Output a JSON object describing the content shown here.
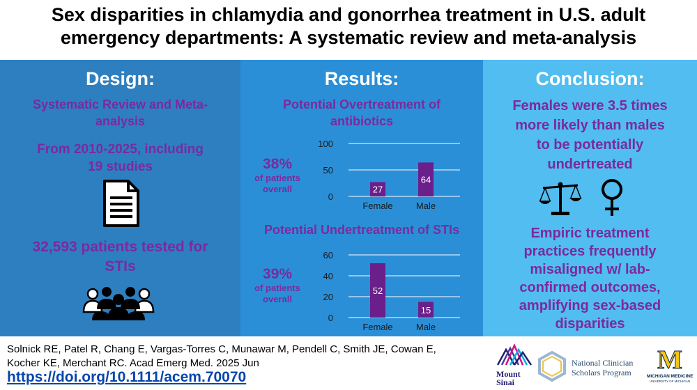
{
  "title": {
    "line1": "Sex disparities in chlamydia and gonorrhea treatment in U.S. adult",
    "line2": "emergency departments: A systematic review and meta-analysis"
  },
  "design": {
    "heading": "Design:",
    "method_l1": "Systematic Review and Meta-",
    "method_l2": "analysis",
    "period_l1": "From 2010-2025, including",
    "period_l2": "19 studies",
    "patients_l1": "32,593 patients tested for",
    "patients_l2": "STIs",
    "document_icon": "document-icon",
    "people_icon": "people-group-icon"
  },
  "results": {
    "heading": "Results:",
    "over_title_l1": "Potential Overtreatment of",
    "over_title_l2": "antibiotics",
    "over_pct": "38%",
    "over_pct_sub_l1": "of patients",
    "over_pct_sub_l2": "overall",
    "under_title": "Potential Undertreatment of STIs",
    "under_pct": "39%",
    "under_pct_sub_l1": "of patients",
    "under_pct_sub_l2": "overall"
  },
  "conclusion": {
    "heading": "Conclusion:",
    "finding_l1": "Females were 3.5 times",
    "finding_l2": "more likely than males",
    "finding_l3": "to be potentially",
    "finding_l4": "undertreated",
    "scales_icon": "balance-scale-icon",
    "female_icon": "female-symbol-icon",
    "stmt_l1": "Empiric treatment",
    "stmt_l2": "practices frequently",
    "stmt_l3": "misaligned w/ lab-",
    "stmt_l4": "confirmed outcomes,",
    "stmt_l5": "amplifying sex-based",
    "stmt_l6": "disparities"
  },
  "footer": {
    "citation_l1": "Solnick RE, Patel R, Chang E, Vargas-Torres C, Munawar M, Pendell C, Smith JE, Cowan E,",
    "citation_l2": "Kocher KE, Merchant RC. Acad Emerg Med. 2025 Jun",
    "link": "https://doi.org/10.1111/acem.70070",
    "logo1_l1": "Mount",
    "logo1_l2": "Sinai",
    "logo2_l1": "National Clinician",
    "logo2_l2": "Scholars Program",
    "logo3_letter": "M",
    "logo3_l1": "MICHIGAN MEDICINE",
    "logo3_l2": "UNIVERSITY OF MICHIGAN"
  },
  "colors": {
    "bar": "#6a1f8a",
    "purple_text": "#7b2a9c",
    "design_bg": "#2e7fc0",
    "results_bg": "#2b8fd8",
    "conclusion_bg": "#52bdf0",
    "michigan_yellow": "#f5c518",
    "michigan_blue": "#00274c"
  },
  "chart_data": [
    {
      "type": "bar",
      "title": "Potential Overtreatment of antibiotics",
      "categories": [
        "Female",
        "Male"
      ],
      "values": [
        27,
        64
      ],
      "ylim": [
        0,
        100
      ],
      "yticks": [
        0,
        50,
        100
      ],
      "grid": true
    },
    {
      "type": "bar",
      "title": "Potential Undertreatment of STIs",
      "categories": [
        "Female",
        "Male"
      ],
      "values": [
        52,
        15
      ],
      "ylim": [
        0,
        60
      ],
      "yticks": [
        0,
        20,
        40,
        60
      ],
      "grid": true
    }
  ]
}
